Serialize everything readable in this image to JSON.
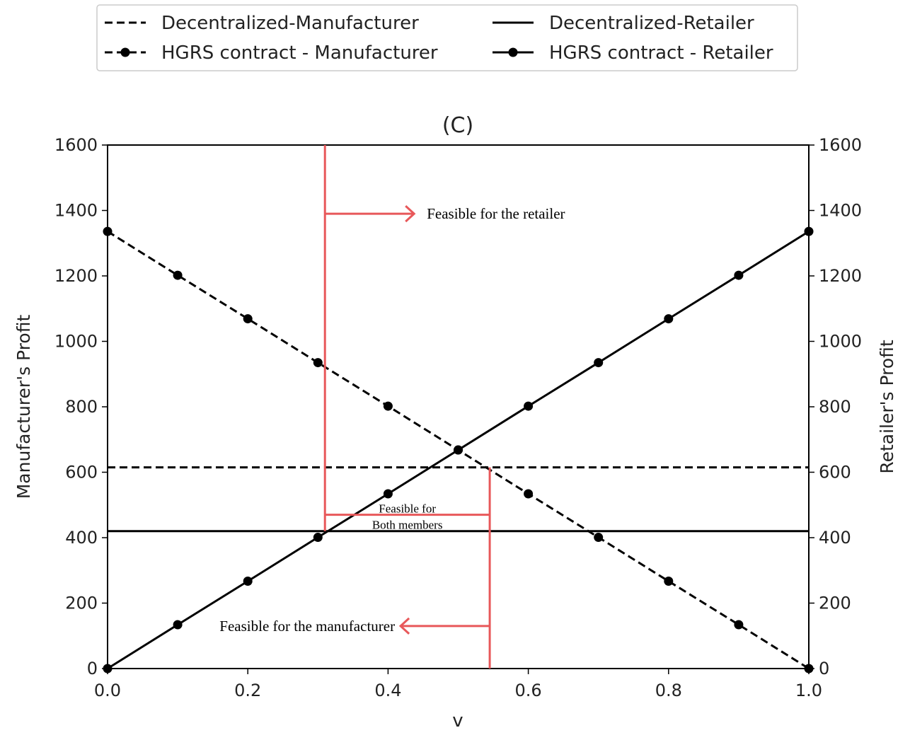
{
  "chart_data": {
    "type": "line",
    "title": "(C)",
    "xlabel": "v",
    "ylabel_left": "Manufacturer's Profit",
    "ylabel_right": "Retailer's Profit",
    "xlim": [
      0,
      1
    ],
    "ylim": [
      0,
      1600
    ],
    "x_ticks": [
      "0.0",
      "0.2",
      "0.4",
      "0.6",
      "0.8",
      "1.0"
    ],
    "y_ticks": [
      "0",
      "200",
      "400",
      "600",
      "800",
      "1000",
      "1200",
      "1400",
      "1600"
    ],
    "grid": false,
    "legend_position": "top-center",
    "series": [
      {
        "name": "Decentralized-Manufacturer",
        "style": "dashed",
        "marker": "none",
        "color": "#000000",
        "x": [
          0,
          1
        ],
        "y": [
          615,
          615
        ]
      },
      {
        "name": "Decentralized-Retailer",
        "style": "solid",
        "marker": "none",
        "color": "#000000",
        "x": [
          0,
          1
        ],
        "y": [
          420,
          420
        ]
      },
      {
        "name": "HGRS contract - Manufacturer",
        "style": "dashed",
        "marker": "circle",
        "color": "#000000",
        "x": [
          0,
          0.1,
          0.2,
          0.3,
          0.4,
          0.5,
          0.6,
          0.7,
          0.8,
          0.9,
          1.0
        ],
        "y": [
          1336,
          1202,
          1069,
          935,
          802,
          668,
          534,
          401,
          267,
          134,
          0
        ]
      },
      {
        "name": "HGRS contract - Retailer",
        "style": "solid",
        "marker": "circle",
        "color": "#000000",
        "x": [
          0,
          0.1,
          0.2,
          0.3,
          0.4,
          0.5,
          0.6,
          0.7,
          0.8,
          0.9,
          1.0
        ],
        "y": [
          0,
          134,
          267,
          401,
          534,
          668,
          802,
          935,
          1069,
          1202,
          1336
        ]
      }
    ],
    "annotations": {
      "color": "#e8585a",
      "retailer_bound_v": 0.31,
      "manufacturer_bound_v": 0.545,
      "retailer_text": "Feasible for the retailer",
      "retailer_arrow_y": 1390,
      "manufacturer_text": "Feasible for the manufacturer",
      "manufacturer_arrow_y": 130,
      "both_line1": "Feasible for",
      "both_line2": "Both members",
      "both_bracket_y": 470
    }
  }
}
